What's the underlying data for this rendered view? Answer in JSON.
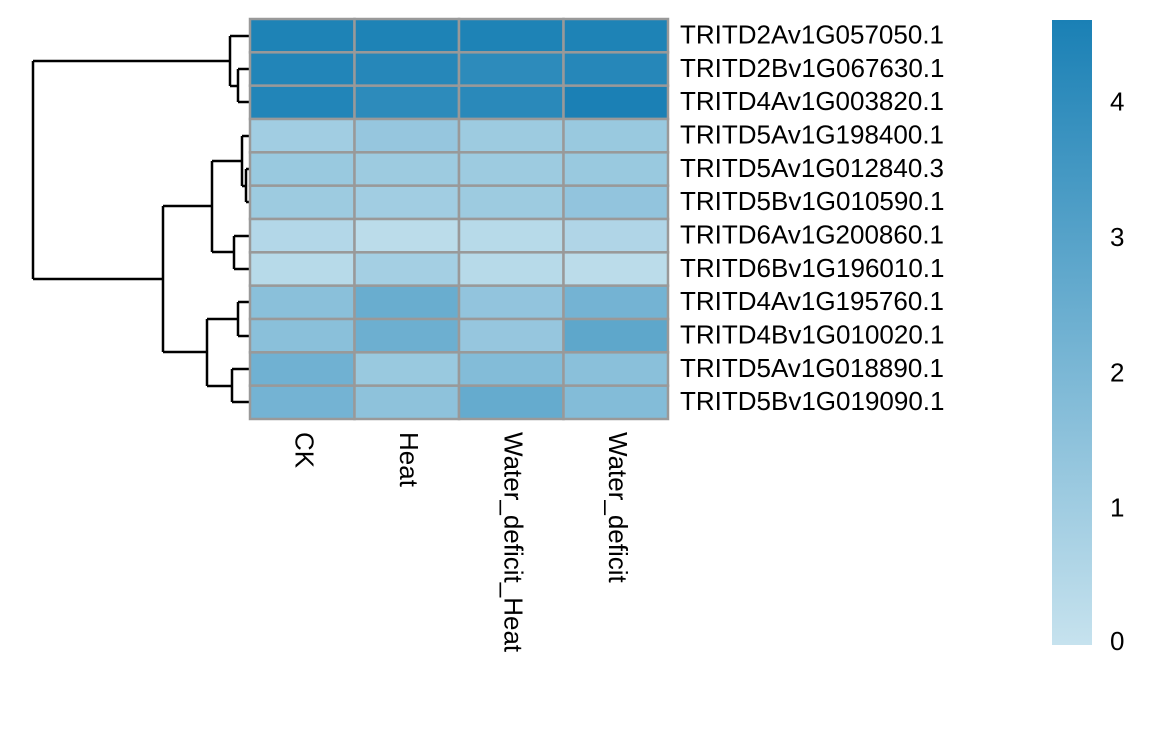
{
  "chart_data": {
    "type": "heatmap",
    "rows": [
      "TRITD2Av1G057050.1",
      "TRITD2Bv1G067630.1",
      "TRITD4Av1G003820.1",
      "TRITD5Av1G198400.1",
      "TRITD5Av1G012840.3",
      "TRITD5Bv1G010590.1",
      "TRITD6Av1G200860.1",
      "TRITD6Bv1G196010.1",
      "TRITD4Av1G195760.1",
      "TRITD4Bv1G010020.1",
      "TRITD5Av1G018890.1",
      "TRITD5Bv1G019090.1"
    ],
    "columns": [
      "CK",
      "Heat",
      "Water_deficit_Heat",
      "Water_deficit"
    ],
    "values": [
      [
        4.5,
        4.5,
        4.5,
        4.5
      ],
      [
        4.4,
        4.3,
        4.1,
        4.3
      ],
      [
        4.4,
        4.1,
        4.2,
        4.6
      ],
      [
        1.0,
        1.3,
        1.1,
        1.2
      ],
      [
        1.2,
        1.1,
        1.1,
        1.2
      ],
      [
        1.1,
        1.0,
        1.1,
        1.4
      ],
      [
        0.5,
        0.3,
        0.4,
        0.6
      ],
      [
        0.4,
        0.9,
        0.4,
        0.3
      ],
      [
        1.6,
        2.5,
        1.4,
        2.2
      ],
      [
        1.6,
        2.4,
        1.3,
        2.8
      ],
      [
        2.3,
        1.2,
        1.8,
        1.6
      ],
      [
        2.2,
        1.5,
        2.6,
        1.8
      ]
    ],
    "colorscale": [
      "#c6e2ee",
      "#1a80b5"
    ],
    "clim": [
      0,
      4.62
    ],
    "cticks": [
      0,
      1,
      2,
      3,
      4
    ]
  }
}
